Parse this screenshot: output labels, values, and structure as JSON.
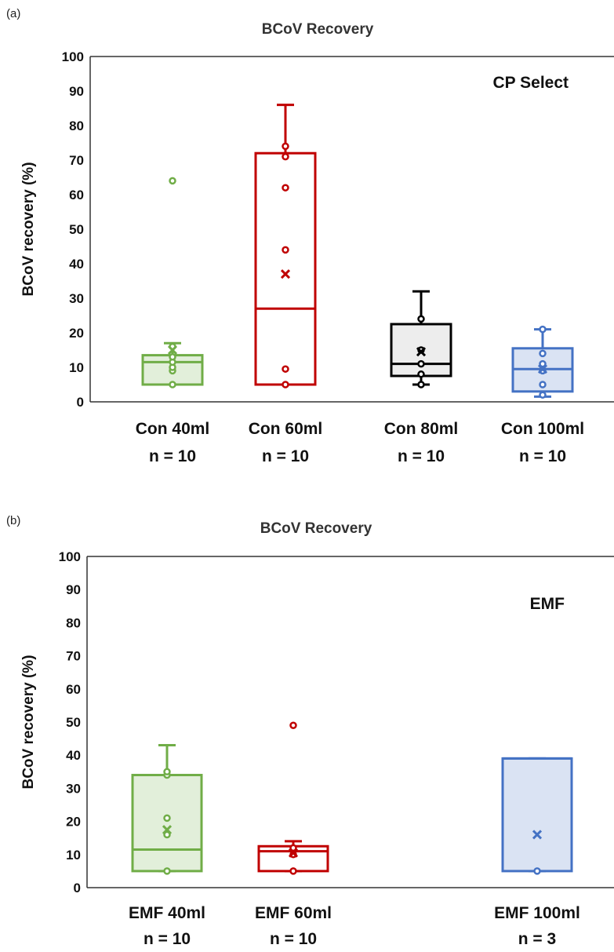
{
  "chart_data": [
    {
      "type": "box",
      "panel_label": "(a)",
      "title": "BCoV Recovery",
      "method_label": "CP Select",
      "ylabel": "BCoV recovery (%)",
      "ylim": [
        0,
        100
      ],
      "yticks": [
        "0",
        "10",
        "20",
        "30",
        "40",
        "50",
        "60",
        "70",
        "80",
        "90",
        "100"
      ],
      "groups": [
        {
          "category": "Con 40ml",
          "n_label": "n = 10",
          "color": "#70ad47",
          "fill": "#e2efda",
          "q1": 5,
          "median": 11.5,
          "q3": 13.5,
          "whisker_low": 5,
          "whisker_high": 17,
          "mean": 15,
          "points": [
            5,
            9,
            10,
            11.5,
            13,
            16,
            64
          ]
        },
        {
          "category": "Con 60ml",
          "n_label": "n = 10",
          "color": "#c00000",
          "fill": "#ffffff",
          "q1": 5,
          "median": 27,
          "q3": 72,
          "whisker_low": 5,
          "whisker_high": 86,
          "mean": 37,
          "points": [
            5,
            9.5,
            44,
            62,
            71,
            74
          ]
        },
        {
          "category": "Con 80ml",
          "n_label": "n = 10",
          "color": "#000000",
          "fill": "#ededed",
          "q1": 7.5,
          "median": 11,
          "q3": 22.5,
          "whisker_low": 5,
          "whisker_high": 32,
          "mean": 14.5,
          "points": [
            5,
            8,
            11,
            15,
            24
          ]
        },
        {
          "category": "Con 100ml",
          "n_label": "n = 10",
          "color": "#4472c4",
          "fill": "#dae3f3",
          "q1": 3,
          "median": 9.5,
          "q3": 15.5,
          "whisker_low": 1.5,
          "whisker_high": 21,
          "mean": 9.5,
          "points": [
            2,
            5,
            9,
            11,
            14,
            21
          ]
        }
      ]
    },
    {
      "type": "box",
      "panel_label": "(b)",
      "title": "BCoV Recovery",
      "method_label": "EMF",
      "ylabel": "BCoV recovery (%)",
      "ylim": [
        0,
        100
      ],
      "yticks": [
        "0",
        "10",
        "20",
        "30",
        "40",
        "50",
        "60",
        "70",
        "80",
        "90",
        "100"
      ],
      "groups": [
        {
          "category": "EMF 40ml",
          "n_label": "n = 10",
          "color": "#70ad47",
          "fill": "#e2efda",
          "q1": 5,
          "median": 11.5,
          "q3": 34,
          "whisker_low": 5,
          "whisker_high": 43,
          "mean": 17.5,
          "points": [
            5,
            16,
            21,
            34,
            35
          ]
        },
        {
          "category": "EMF 60ml",
          "n_label": "n = 10",
          "color": "#c00000",
          "fill": "#ffffff",
          "q1": 5,
          "median": 11,
          "q3": 12.5,
          "whisker_low": 5,
          "whisker_high": 14,
          "mean": 10.5,
          "points": [
            5,
            10,
            12,
            49
          ]
        },
        {
          "category": "EMF 100ml",
          "n_label": "n = 3",
          "color": "#4472c4",
          "fill": "#dae3f3",
          "q1": 5,
          "median": 39,
          "q3": 39,
          "whisker_low": 5,
          "whisker_high": 39,
          "mean": 16,
          "points": [
            5
          ]
        }
      ]
    }
  ]
}
